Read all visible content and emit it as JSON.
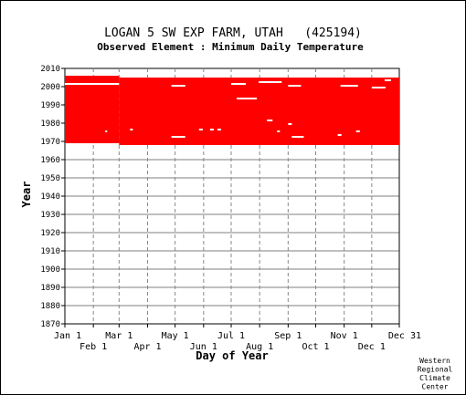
{
  "chart_data": {
    "type": "bar",
    "title": "LOGAN 5 SW EXP FARM, UTAH   (425194)",
    "subtitle": "Observed Element : Minimum Daily Temperature",
    "xlabel": "Day of Year",
    "ylabel": "Year",
    "ylim": [
      1870,
      2010
    ],
    "yticks": [
      1870,
      1880,
      1890,
      1900,
      1910,
      1920,
      1930,
      1940,
      1950,
      1960,
      1970,
      1980,
      1990,
      2000,
      2010
    ],
    "xlim": [
      1,
      365
    ],
    "xticks": [
      {
        "day": 1,
        "label": "Jan 1"
      },
      {
        "day": 32,
        "label": "Feb 1"
      },
      {
        "day": 60,
        "label": "Mar 1"
      },
      {
        "day": 91,
        "label": "Apr 1"
      },
      {
        "day": 121,
        "label": "May 1"
      },
      {
        "day": 152,
        "label": "Jun 1"
      },
      {
        "day": 182,
        "label": "Jul 1"
      },
      {
        "day": 213,
        "label": "Aug 1"
      },
      {
        "day": 244,
        "label": "Sep 1"
      },
      {
        "day": 274,
        "label": "Oct 1"
      },
      {
        "day": 305,
        "label": "Nov 1"
      },
      {
        "day": 335,
        "label": "Dec 1"
      },
      {
        "day": 365,
        "label": "Dec 31"
      }
    ],
    "grid": true,
    "color": "#ff0000",
    "segments": [
      {
        "day_start": 1,
        "day_end": 60,
        "year_start": 1969,
        "year_end": 2006
      },
      {
        "day_start": 60,
        "day_end": 365,
        "year_start": 1968,
        "year_end": 2005
      }
    ],
    "gaps": [
      {
        "day_start": 1,
        "day_end": 60,
        "year": 2001
      },
      {
        "day_start": 117,
        "day_end": 132,
        "year": 2000
      },
      {
        "day_start": 182,
        "day_end": 198,
        "year": 2001
      },
      {
        "day_start": 188,
        "day_end": 210,
        "year": 1993
      },
      {
        "day_start": 212,
        "day_end": 237,
        "year": 2002
      },
      {
        "day_start": 244,
        "day_end": 258,
        "year": 2000
      },
      {
        "day_start": 301,
        "day_end": 320,
        "year": 2000
      },
      {
        "day_start": 335,
        "day_end": 350,
        "year": 1999
      },
      {
        "day_start": 117,
        "day_end": 132,
        "year": 1972
      },
      {
        "day_start": 248,
        "day_end": 261,
        "year": 1972
      },
      {
        "day_start": 221,
        "day_end": 227,
        "year": 1981
      },
      {
        "day_start": 244,
        "day_end": 248,
        "year": 1979
      },
      {
        "day_start": 147,
        "day_end": 151,
        "year": 1976
      },
      {
        "day_start": 159,
        "day_end": 163,
        "year": 1976
      },
      {
        "day_start": 167,
        "day_end": 171,
        "year": 1976
      },
      {
        "day_start": 232,
        "day_end": 235,
        "year": 1975
      },
      {
        "day_start": 72,
        "day_end": 75,
        "year": 1976
      },
      {
        "day_start": 298,
        "day_end": 302,
        "year": 1973
      },
      {
        "day_start": 318,
        "day_end": 322,
        "year": 1975
      },
      {
        "day_start": 45,
        "day_end": 47,
        "year": 1975
      },
      {
        "day_start": 349,
        "day_end": 356,
        "year": 2003
      }
    ]
  },
  "credit": [
    "Western",
    "Regional",
    "Climate",
    "Center"
  ]
}
